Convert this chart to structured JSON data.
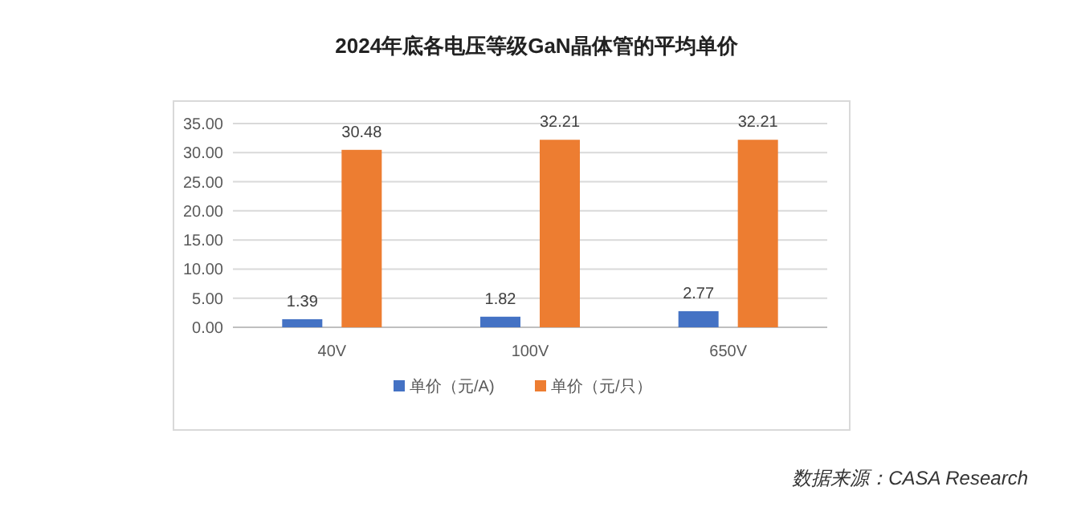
{
  "chart_data": {
    "type": "bar",
    "title": "2024年底各电压等级GaN晶体管的平均单价",
    "categories": [
      "40V",
      "100V",
      "650V"
    ],
    "series": [
      {
        "name": "单价（元/A)",
        "color": "#4472c4",
        "values": [
          1.39,
          1.82,
          2.77
        ]
      },
      {
        "name": "单价（元/只）",
        "color": "#ed7d31",
        "values": [
          30.48,
          32.21,
          32.21
        ]
      }
    ],
    "ylim": [
      0,
      35
    ],
    "yticks": [
      {
        "value": 0,
        "label": "0.00"
      },
      {
        "value": 5,
        "label": "5.00"
      },
      {
        "value": 10,
        "label": "10.00"
      },
      {
        "value": 15,
        "label": "15.00"
      },
      {
        "value": 20,
        "label": "20.00"
      },
      {
        "value": 25,
        "label": "25.00"
      },
      {
        "value": 30,
        "label": "30.00"
      },
      {
        "value": 35,
        "label": "35.00"
      }
    ],
    "grid": "y",
    "legend": "bottom",
    "data_labels": true,
    "annotations": [
      "数据来源：CASA Research"
    ]
  }
}
